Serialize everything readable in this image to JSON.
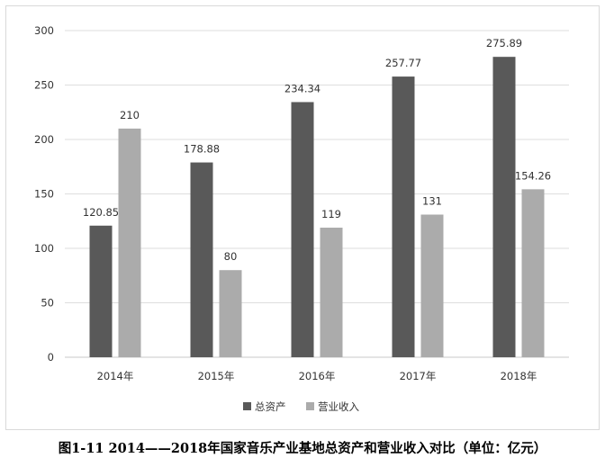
{
  "chart_data": {
    "type": "bar",
    "categories": [
      "2014年",
      "2015年",
      "2016年",
      "2017年",
      "2018年"
    ],
    "series": [
      {
        "name": "总资产",
        "values": [
          120.85,
          178.88,
          234.34,
          257.77,
          275.89
        ],
        "labels": [
          "120.85",
          "178.88",
          "234.34",
          "257.77",
          "275.89"
        ],
        "color": "#595959"
      },
      {
        "name": "营业收入",
        "values": [
          210,
          80,
          119,
          131,
          154.26
        ],
        "labels": [
          "210",
          "80",
          "119",
          "131",
          "154.26"
        ],
        "color": "#ababab"
      }
    ],
    "ylim": [
      0,
      300
    ],
    "yticks": [
      0,
      50,
      100,
      150,
      200,
      250,
      300
    ],
    "grid": true,
    "legend": "bottom"
  },
  "caption": "图1-11  2014——2018年国家音乐产业基地总资产和营业收入对比（单位：亿元）"
}
